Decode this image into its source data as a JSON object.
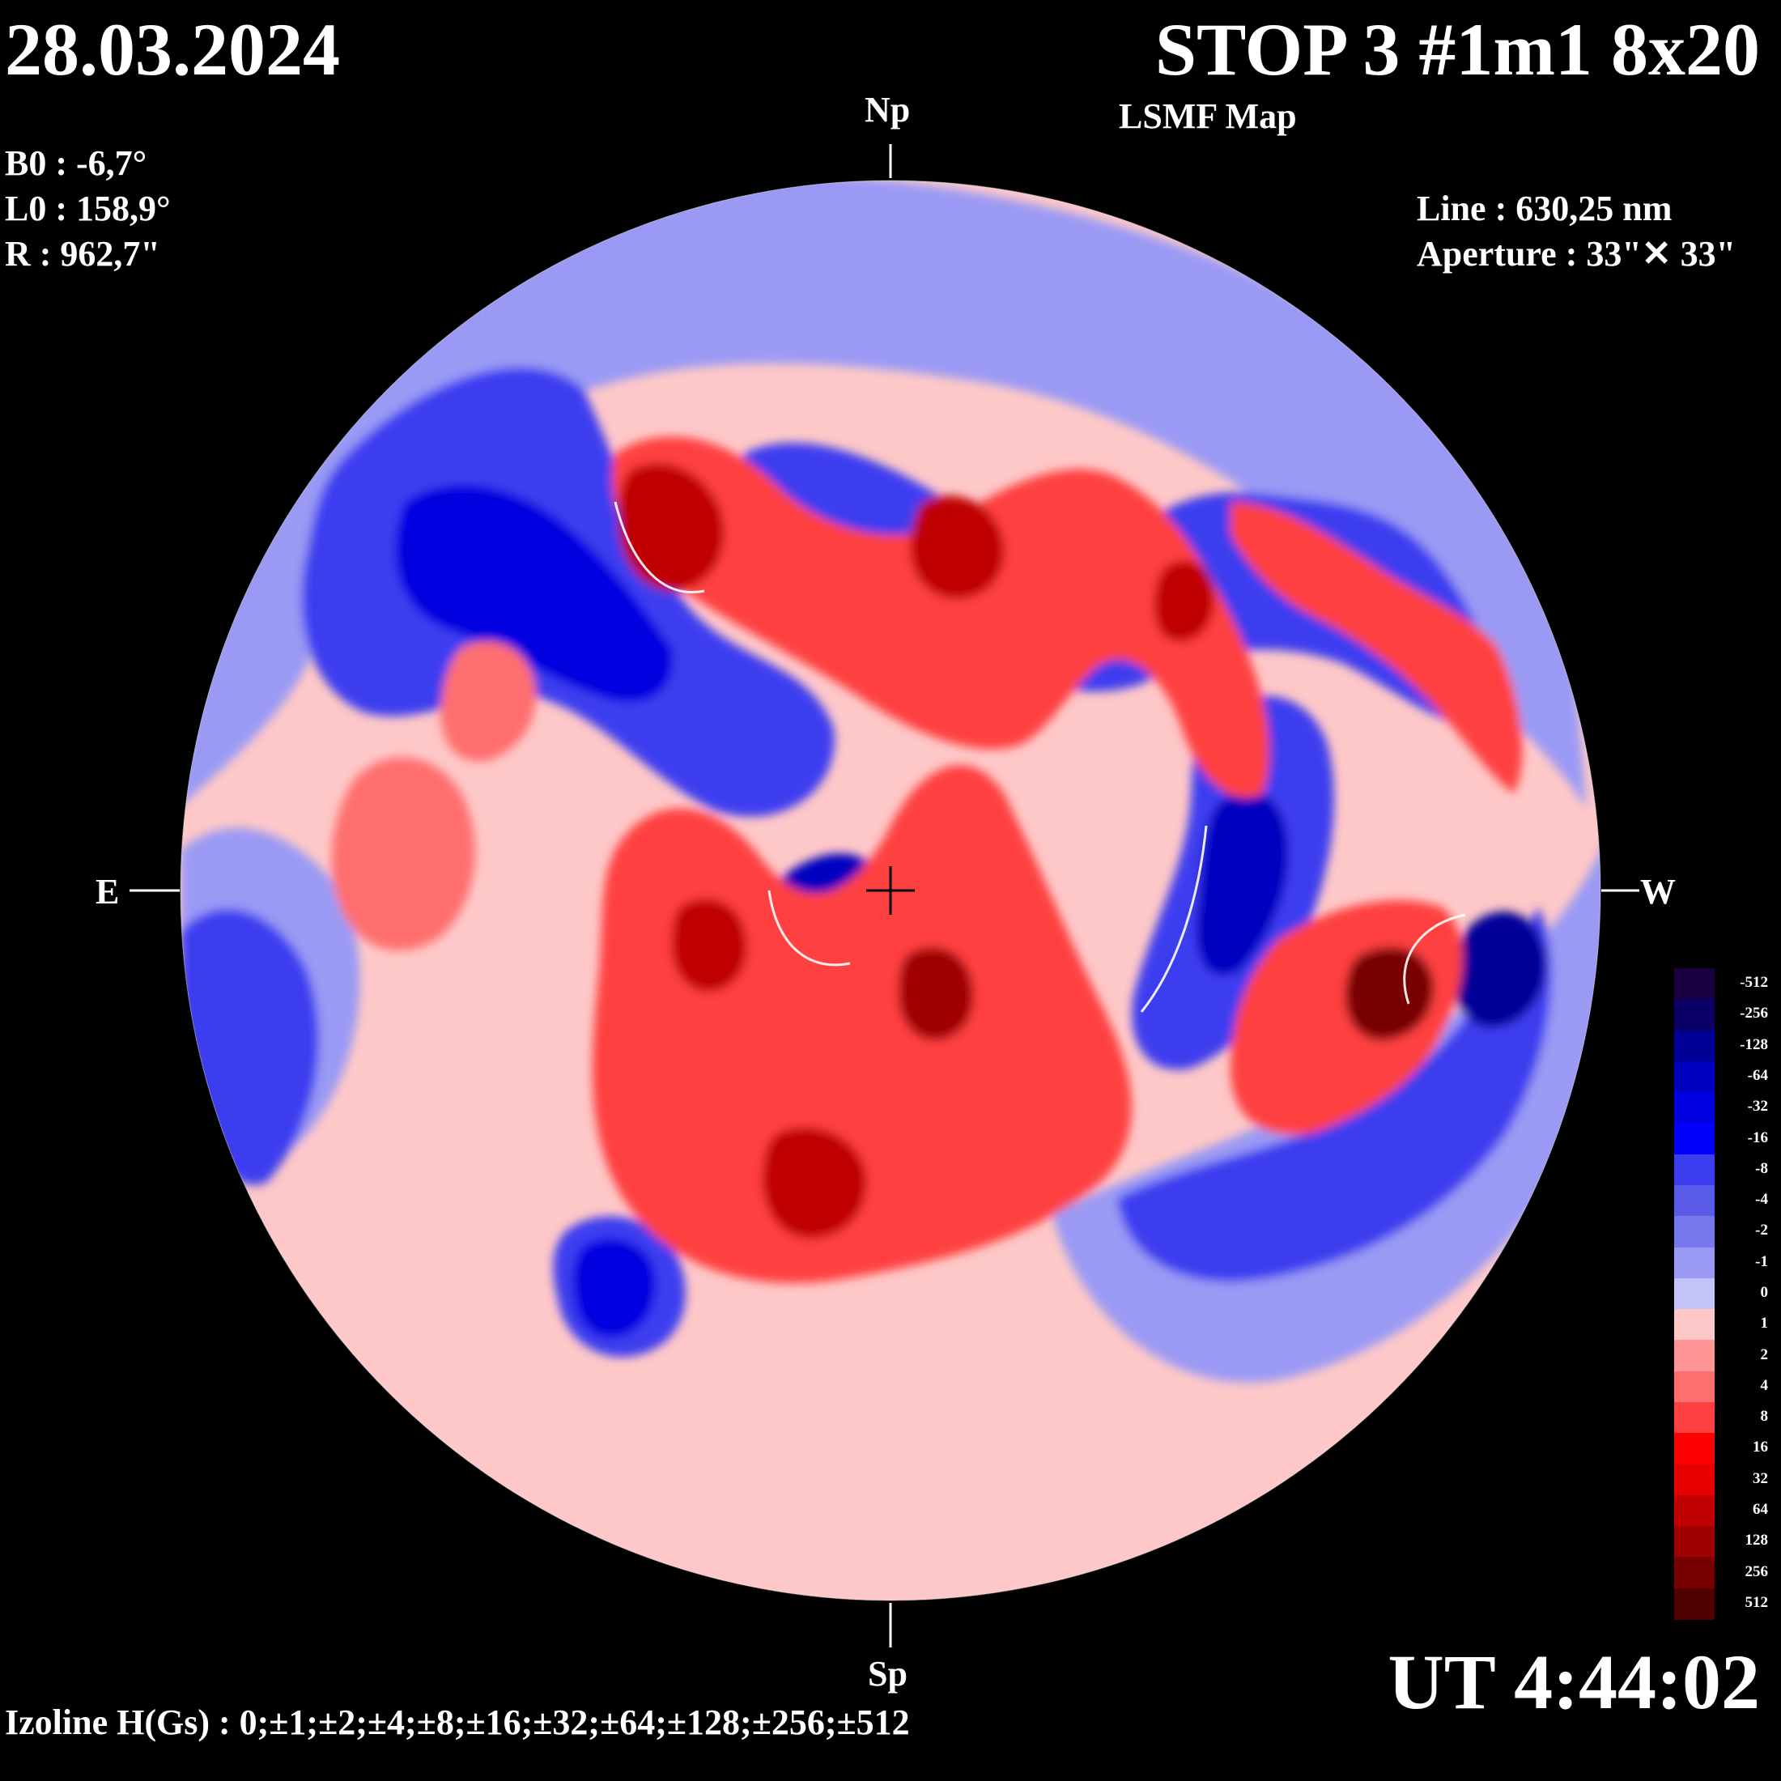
{
  "header": {
    "date": "28.03.2024",
    "title": "STOP 3 #1m1 8x20",
    "subtitle": "LSMF  Map"
  },
  "params": {
    "b0": "B0 : -6,7°",
    "l0": "L0 : 158,9°",
    "r": "R  : 962,7\""
  },
  "instrument": {
    "line": "Line :  630,25 nm",
    "aperture": "Aperture : 33\"✕ 33\""
  },
  "directions": {
    "north": "Np",
    "south": "Sp",
    "east": "E",
    "west": "W"
  },
  "time": "UT 4:44:02",
  "izoline": "Izoline H(Gs) : 0;±1;±2;±4;±8;±16;±32;±64;±128;±256;±512",
  "scale": {
    "labels": [
      "-512",
      "-256",
      "-128",
      "-64",
      "-32",
      "-16",
      "-8",
      "-4",
      "-2",
      "-1",
      "0",
      "1",
      "2",
      "4",
      "8",
      "16",
      "32",
      "64",
      "128",
      "256",
      "512"
    ],
    "colors": [
      "#1a0040",
      "#0a0066",
      "#000099",
      "#0000c0",
      "#0000e0",
      "#0000ff",
      "#3c3cf0",
      "#5a5ae8",
      "#7878ee",
      "#9a9af4",
      "#c4c4fa",
      "#ffc8c8",
      "#ff9696",
      "#ff6e6e",
      "#ff4040",
      "#ff0000",
      "#e60000",
      "#c00000",
      "#a00000",
      "#780000",
      "#500000"
    ]
  }
}
